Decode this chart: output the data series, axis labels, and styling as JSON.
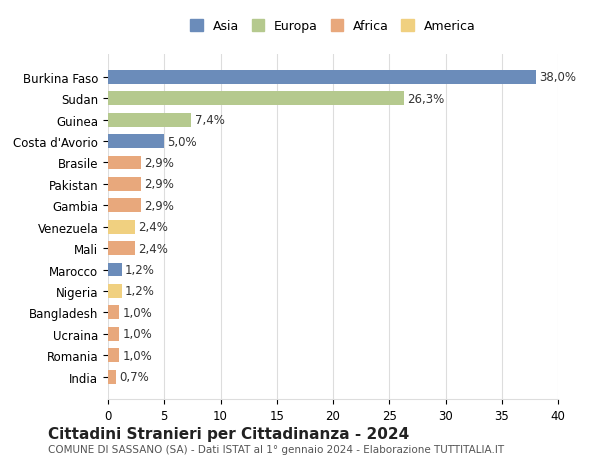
{
  "countries": [
    "India",
    "Romania",
    "Ucraina",
    "Bangladesh",
    "Nigeria",
    "Marocco",
    "Mali",
    "Venezuela",
    "Gambia",
    "Pakistan",
    "Brasile",
    "Costa d'Avorio",
    "Guinea",
    "Sudan",
    "Burkina Faso"
  ],
  "values": [
    38.0,
    26.3,
    7.4,
    5.0,
    2.9,
    2.9,
    2.9,
    2.4,
    2.4,
    1.2,
    1.2,
    1.0,
    1.0,
    1.0,
    0.7
  ],
  "labels": [
    "38,0%",
    "26,3%",
    "7,4%",
    "5,0%",
    "2,9%",
    "2,9%",
    "2,9%",
    "2,4%",
    "2,4%",
    "1,2%",
    "1,2%",
    "1,0%",
    "1,0%",
    "1,0%",
    "0,7%"
  ],
  "continents": [
    "Asia",
    "Europa",
    "Europa",
    "Asia",
    "Africa",
    "Africa",
    "Africa",
    "America",
    "Africa",
    "Asia",
    "America",
    "Africa",
    "Africa",
    "Africa",
    "Africa"
  ],
  "continent_colors": {
    "Asia": "#6b8cba",
    "Europa": "#b5c98e",
    "Africa": "#e8a87c",
    "America": "#f0d080"
  },
  "legend_order": [
    "Asia",
    "Europa",
    "Africa",
    "America"
  ],
  "xlim": [
    0,
    40
  ],
  "xticks": [
    0,
    5,
    10,
    15,
    20,
    25,
    30,
    35,
    40
  ],
  "title": "Cittadini Stranieri per Cittadinanza - 2024",
  "subtitle": "COMUNE DI SASSANO (SA) - Dati ISTAT al 1° gennaio 2024 - Elaborazione TUTTITALIA.IT",
  "background_color": "#ffffff",
  "grid_color": "#dddddd",
  "bar_height": 0.65,
  "label_fontsize": 8.5,
  "ytick_fontsize": 8.5,
  "xtick_fontsize": 8.5,
  "title_fontsize": 11,
  "subtitle_fontsize": 7.5
}
